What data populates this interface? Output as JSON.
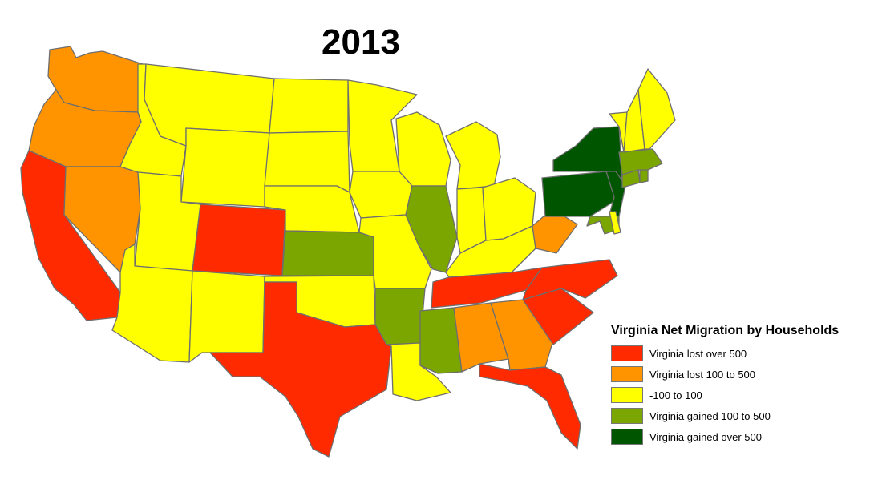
{
  "title": "2013",
  "legend": {
    "title": "Virginia Net Migration by Households",
    "items": [
      {
        "key": "lost_over_500",
        "label": "Virginia lost over 500",
        "color": "#ff2a00"
      },
      {
        "key": "lost_100_500",
        "label": "Virginia lost 100 to 500",
        "color": "#ff9400"
      },
      {
        "key": "neutral",
        "label": "-100 to 100",
        "color": "#ffff00"
      },
      {
        "key": "gained_100_500",
        "label": "Virginia gained 100 to 500",
        "color": "#7ba600"
      },
      {
        "key": "gained_over_500",
        "label": "Virginia gained over 500",
        "color": "#005500"
      }
    ]
  },
  "states": {
    "WA": "lost_100_500",
    "OR": "lost_100_500",
    "CA": "lost_over_500",
    "NV": "lost_100_500",
    "ID": "neutral",
    "MT": "neutral",
    "WY": "neutral",
    "UT": "neutral",
    "AZ": "neutral",
    "CO": "lost_over_500",
    "NM": "neutral",
    "ND": "neutral",
    "SD": "neutral",
    "NE": "neutral",
    "KS": "gained_100_500",
    "OK": "neutral",
    "TX": "lost_over_500",
    "MN": "neutral",
    "IA": "neutral",
    "MO": "neutral",
    "AR": "gained_100_500",
    "LA": "neutral",
    "WI": "neutral",
    "IL": "gained_100_500",
    "MI": "neutral",
    "IN": "neutral",
    "OH": "neutral",
    "KY": "neutral",
    "TN": "lost_over_500",
    "MS": "gained_100_500",
    "AL": "lost_100_500",
    "GA": "lost_100_500",
    "FL": "lost_over_500",
    "SC": "lost_over_500",
    "NC": "lost_over_500",
    "WV": "lost_100_500",
    "PA": "gained_over_500",
    "NY": "gained_over_500",
    "NJ": "gained_over_500",
    "MD": "gained_100_500",
    "DE": "neutral",
    "CT": "gained_100_500",
    "MA": "gained_100_500",
    "RI": "gained_100_500",
    "VT": "neutral",
    "NH": "neutral",
    "ME": "neutral"
  }
}
